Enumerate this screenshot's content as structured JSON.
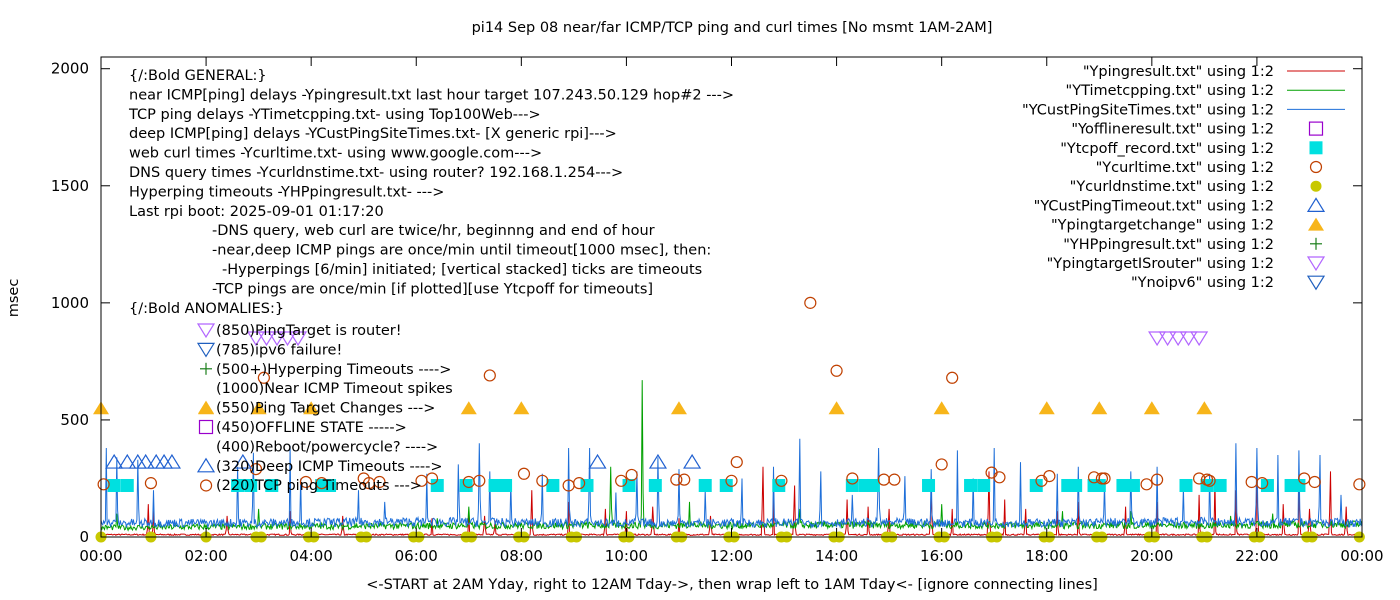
{
  "chart_data": {
    "type": "line",
    "title": "pi14 Sep 08  near/far ICMP/TCP ping and curl times [No msmt 1AM-2AM]",
    "xlabel": "<-START at 2AM Yday, right to 12AM Tday->, then wrap left to 1AM Tday<- [ignore connecting lines]",
    "ylabel": "msec",
    "xlim": [
      0,
      24
    ],
    "ylim": [
      0,
      2050
    ],
    "grid": false,
    "legend_position": "top-right",
    "x_tick_labels": [
      "00:00",
      "02:00",
      "04:00",
      "06:00",
      "08:00",
      "10:00",
      "12:00",
      "14:00",
      "16:00",
      "18:00",
      "20:00",
      "22:00",
      "00:00"
    ],
    "y_ticks": [
      0,
      500,
      1000,
      1500,
      2000
    ],
    "annotations": [
      "{/:Bold GENERAL:}",
      "near ICMP[ping] delays -Ypingresult.txt last hour target 107.243.50.129 hop#2 --->",
      "TCP ping delays -YTimetcpping.txt- using Top100Web--->",
      "deep ICMP[ping] delays -YCustPingSiteTimes.txt- [X generic rpi]--->",
      "web curl times -Ycurltime.txt- using www.google.com--->",
      "DNS query times -Ycurldnstime.txt- using router? 192.168.1.254--->",
      "Hyperping timeouts -YHPpingresult.txt- --->",
      "Last rpi boot: 2025-09-01 01:17:20",
      "-DNS query, web curl are twice/hr, beginnng and end of hour",
      "-near,deep ICMP pings are once/min until timeout[1000 msec], then:",
      "-Hyperpings [6/min] initiated; [vertical stacked] ticks are timeouts",
      "-TCP pings are once/min [if plotted][use Ytcpoff for timeouts]",
      "{/:Bold ANOMALIES:}"
    ],
    "anomaly_keys": [
      {
        "label": "(850)PingTarget is router!",
        "marker": "triangle-down",
        "color": "#b266ff"
      },
      {
        "label": "(785)ipv6 failure!",
        "marker": "triangle-down",
        "color": "#1f5fbf"
      },
      {
        "label": "(500+)Hyperping Timeouts ---->",
        "marker": "plus",
        "color": "#1a7f1a"
      },
      {
        "label": "(1000)Near ICMP Timeout spikes",
        "marker": "none",
        "color": "#000000"
      },
      {
        "label": "(550)Ping Target Changes --->",
        "marker": "triangle",
        "color": "#f7b51a"
      },
      {
        "label": "(450)OFFLINE STATE ----->",
        "marker": "square-open",
        "color": "#9900cc"
      },
      {
        "label": "(400)Reboot/powercycle? ---->",
        "marker": "none",
        "color": "#000000"
      },
      {
        "label": "(320)Deep ICMP Timeouts ---->",
        "marker": "triangle-open",
        "color": "#2060d0"
      },
      {
        "label": "(220)TCP ping Timeouts --->",
        "marker": "circle",
        "color": "#c8c800"
      }
    ],
    "series": [
      {
        "name": "\"Ypingresult.txt\" using 1:2",
        "marker": "line",
        "color": "#cc0000",
        "x": [
          0,
          3,
          6,
          9,
          12,
          15,
          18,
          21,
          24
        ],
        "y": [
          10,
          10,
          10,
          10,
          10,
          10,
          10,
          10,
          10
        ],
        "spikes": [
          [
            0.9,
            140
          ],
          [
            1.0,
            110
          ],
          [
            2.4,
            90
          ],
          [
            3.6,
            110
          ],
          [
            4.6,
            90
          ],
          [
            6.3,
            80
          ],
          [
            7.0,
            100
          ],
          [
            7.3,
            90
          ],
          [
            7.5,
            70
          ],
          [
            8.2,
            200
          ],
          [
            8.9,
            150
          ],
          [
            9.6,
            120
          ],
          [
            10.0,
            110
          ],
          [
            10.5,
            130
          ],
          [
            11.0,
            80
          ],
          [
            11.6,
            90
          ],
          [
            12.6,
            300
          ],
          [
            12.8,
            180
          ],
          [
            13.2,
            220
          ],
          [
            14.2,
            160
          ],
          [
            14.6,
            130
          ],
          [
            15.0,
            120
          ],
          [
            15.8,
            200
          ],
          [
            16.2,
            120
          ],
          [
            16.9,
            280
          ],
          [
            17.2,
            160
          ],
          [
            17.6,
            120
          ],
          [
            18.2,
            110
          ],
          [
            18.6,
            150
          ],
          [
            19.5,
            130
          ],
          [
            20.1,
            150
          ],
          [
            20.9,
            180
          ],
          [
            21.2,
            240
          ],
          [
            21.6,
            200
          ],
          [
            22.0,
            250
          ],
          [
            22.5,
            140
          ],
          [
            22.8,
            200
          ],
          [
            23.0,
            120
          ],
          [
            23.4,
            280
          ],
          [
            23.7,
            130
          ]
        ]
      },
      {
        "name": "\"YTimetcpping.txt\" using 1:2",
        "marker": "line",
        "color": "#00a000",
        "x": [
          0,
          3,
          6,
          9,
          12,
          15,
          18,
          21,
          24
        ],
        "y": [
          40,
          45,
          48,
          50,
          50,
          52,
          50,
          50,
          55
        ],
        "spikes": [
          [
            0.3,
            100
          ],
          [
            3.0,
            120
          ],
          [
            6.4,
            80
          ],
          [
            7.0,
            130
          ],
          [
            9.7,
            300
          ],
          [
            10.3,
            670
          ],
          [
            11.2,
            150
          ],
          [
            13.3,
            120
          ],
          [
            16.0,
            140
          ],
          [
            18.3,
            110
          ],
          [
            19.6,
            110
          ],
          [
            21.5,
            90
          ],
          [
            22.3,
            100
          ]
        ]
      },
      {
        "name": "\"YCustPingSiteTimes.txt\" using 1:2",
        "marker": "line",
        "color": "#1e6fd9",
        "x": [
          0,
          3,
          6,
          9,
          12,
          15,
          18,
          21,
          24
        ],
        "y": [
          60,
          60,
          65,
          60,
          60,
          62,
          60,
          65,
          60
        ],
        "spikes": [
          [
            0.1,
            380
          ],
          [
            0.3,
            340
          ],
          [
            0.7,
            330
          ],
          [
            1.0,
            200
          ],
          [
            2.6,
            300
          ],
          [
            2.9,
            360
          ],
          [
            3.6,
            390
          ],
          [
            3.8,
            250
          ],
          [
            4.9,
            200
          ],
          [
            5.4,
            150
          ],
          [
            6.2,
            270
          ],
          [
            6.8,
            310
          ],
          [
            7.2,
            400
          ],
          [
            7.4,
            280
          ],
          [
            7.8,
            230
          ],
          [
            8.4,
            270
          ],
          [
            8.9,
            380
          ],
          [
            9.3,
            380
          ],
          [
            9.8,
            190
          ],
          [
            10.2,
            280
          ],
          [
            10.6,
            340
          ],
          [
            11.0,
            290
          ],
          [
            11.5,
            200
          ],
          [
            12.2,
            250
          ],
          [
            12.8,
            300
          ],
          [
            13.3,
            420
          ],
          [
            13.7,
            280
          ],
          [
            14.3,
            180
          ],
          [
            14.8,
            380
          ],
          [
            15.3,
            260
          ],
          [
            15.8,
            290
          ],
          [
            16.3,
            370
          ],
          [
            16.6,
            250
          ],
          [
            17.0,
            380
          ],
          [
            17.5,
            320
          ],
          [
            18.2,
            270
          ],
          [
            18.6,
            300
          ],
          [
            19.1,
            230
          ],
          [
            19.6,
            280
          ],
          [
            20.1,
            300
          ],
          [
            20.6,
            210
          ],
          [
            21.1,
            270
          ],
          [
            21.6,
            400
          ],
          [
            22.0,
            380
          ],
          [
            22.4,
            350
          ],
          [
            22.8,
            370
          ],
          [
            23.2,
            350
          ],
          [
            23.6,
            180
          ]
        ]
      },
      {
        "name": "\"Yofflineresult.txt\" using 1:2",
        "marker": "square-open",
        "color": "#9900cc",
        "x": [],
        "y": []
      },
      {
        "name": "\"Ytcpoff_record.txt\" using 1:2",
        "marker": "square-filled",
        "color": "#00e0e0",
        "x": [
          0.25,
          0.5,
          2.6,
          2.85,
          3.25,
          4.2,
          4.35,
          6.4,
          6.95,
          7.5,
          7.7,
          8.6,
          9.25,
          10.05,
          10.55,
          11.5,
          11.9,
          12.9,
          14.3,
          14.55,
          14.7,
          15.75,
          16.55,
          16.8,
          17.8,
          18.4,
          18.55,
          18.9,
          19.0,
          19.45,
          19.65,
          20.65,
          21.05,
          21.3,
          22.2,
          22.65,
          22.8
        ],
        "y": [
          220,
          220,
          220,
          220,
          220,
          220,
          220,
          220,
          220,
          220,
          220,
          220,
          220,
          220,
          220,
          220,
          220,
          220,
          220,
          220,
          220,
          220,
          220,
          220,
          220,
          220,
          220,
          220,
          220,
          220,
          220,
          220,
          220,
          220,
          220,
          220,
          220
        ]
      },
      {
        "name": "\"Ycurltime.txt\" using 1:2",
        "marker": "circle-open",
        "color": "#c04000",
        "x": [
          0.05,
          0.95,
          2.0,
          2.95,
          3.1,
          3.9,
          4.2,
          5.0,
          5.1,
          5.3,
          6.1,
          6.3,
          7.0,
          7.2,
          7.4,
          8.05,
          8.4,
          8.9,
          9.1,
          9.9,
          10.1,
          10.95,
          11.1,
          12.0,
          12.1,
          12.95,
          13.5,
          14.0,
          14.3,
          14.9,
          15.1,
          16.0,
          16.2,
          16.95,
          17.1,
          17.9,
          18.05,
          18.9,
          19.05,
          19.1,
          19.9,
          20.1,
          20.9,
          21.05,
          21.1,
          21.9,
          22.1,
          22.9,
          23.1,
          23.95
        ],
        "y": [
          225,
          230,
          220,
          290,
          680,
          235,
          230,
          250,
          230,
          235,
          240,
          250,
          235,
          240,
          690,
          270,
          240,
          220,
          230,
          240,
          265,
          245,
          245,
          240,
          320,
          240,
          1000,
          710,
          250,
          245,
          245,
          310,
          680,
          275,
          255,
          240,
          260,
          255,
          250,
          250,
          225,
          245,
          250,
          245,
          240,
          235,
          230,
          250,
          235,
          225
        ]
      },
      {
        "name": "\"Ycurldnstime.txt\" using 1:2",
        "marker": "circle-filled",
        "color": "#c8c800",
        "x": [
          0,
          0.95,
          2.0,
          2.95,
          3.05,
          3.95,
          4.05,
          4.95,
          5.05,
          5.95,
          6.05,
          6.95,
          7.05,
          7.95,
          8.05,
          8.95,
          9.05,
          9.95,
          10.05,
          10.95,
          11.05,
          11.95,
          12.05,
          12.95,
          13.05,
          13.95,
          14.05,
          14.95,
          15.05,
          15.95,
          16.05,
          16.95,
          17.05,
          17.95,
          18.05,
          18.95,
          19.05,
          19.95,
          20.05,
          20.95,
          21.05,
          21.95,
          22.05,
          22.95,
          23.05,
          23.95
        ],
        "y": [
          0,
          0,
          0,
          0,
          0,
          0,
          0,
          0,
          0,
          0,
          0,
          0,
          0,
          0,
          0,
          0,
          0,
          0,
          0,
          0,
          0,
          0,
          0,
          0,
          0,
          0,
          0,
          0,
          0,
          0,
          0,
          0,
          0,
          0,
          0,
          0,
          0,
          0,
          0,
          0,
          0,
          0,
          0,
          0,
          0,
          0
        ]
      },
      {
        "name": "\"YCustPingTimeout.txt\" using 1:2",
        "marker": "triangle-open",
        "color": "#2060d0",
        "x": [
          0.25,
          0.5,
          0.7,
          0.85,
          1.05,
          1.2,
          1.35,
          2.7,
          9.45,
          10.6,
          11.25
        ],
        "y": [
          320,
          320,
          320,
          320,
          320,
          320,
          320,
          320,
          320,
          320,
          320
        ]
      },
      {
        "name": "\"Ypingtargetchange\" using 1:2",
        "marker": "triangle-filled",
        "color": "#f7b51a",
        "x": [
          0.0,
          2.0,
          3.0,
          4.0,
          7.0,
          8.0,
          11.0,
          14.0,
          16.0,
          18.0,
          19.0,
          20.0,
          21.0
        ],
        "y": [
          550,
          550,
          550,
          550,
          550,
          550,
          550,
          550,
          550,
          550,
          550,
          550,
          550
        ]
      },
      {
        "name": "\"YHPpingresult.txt\" using 1:2",
        "marker": "plus",
        "color": "#1a7f1a",
        "x": [],
        "y": []
      },
      {
        "name": "\"YpingtargetISrouter\" using 1:2",
        "marker": "triangle-down-open",
        "color": "#b266ff",
        "x": [
          2.95,
          3.15,
          3.35,
          3.55,
          3.75,
          20.1,
          20.3,
          20.5,
          20.7,
          20.9
        ],
        "y": [
          850,
          850,
          850,
          850,
          850,
          850,
          850,
          850,
          850,
          850
        ]
      },
      {
        "name": "\"Ynoipv6\" using 1:2",
        "marker": "triangle-down-open",
        "color": "#1f5fbf",
        "x": [],
        "y": []
      }
    ]
  }
}
